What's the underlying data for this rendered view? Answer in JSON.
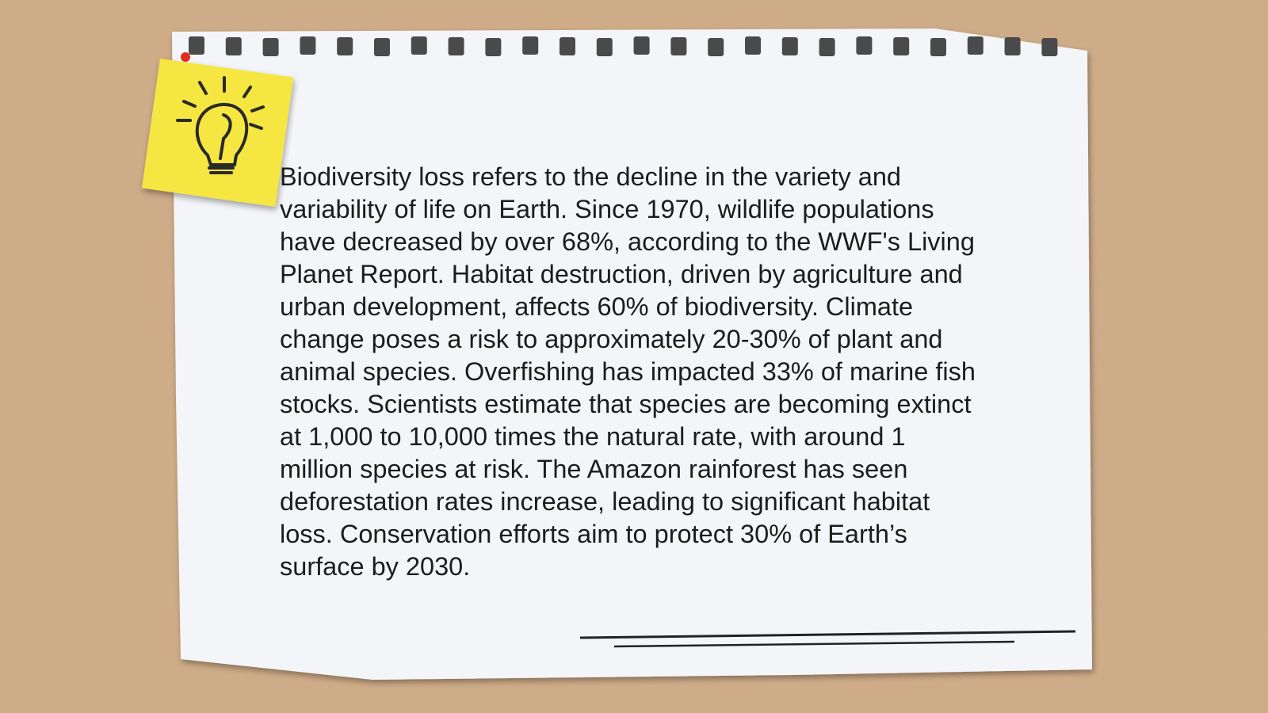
{
  "note": {
    "paragraph": "Biodiversity loss refers to the decline in the variety and variability of life on Earth. Since 1970, wildlife populations have decreased by over 68%, according to the WWF's Living Planet Report. Habitat destruction, driven by agriculture and urban development, affects 60% of biodiversity. Climate change poses a risk to approximately 20-30% of plant and animal species. Overfishing has impacted 33% of marine fish stocks. Scientists estimate that species are becoming extinct at 1,000 to 10,000 times the natural rate, with around 1 million species at risk. The Amazon rainforest has seen deforestation rates increase, leading to significant habitat loss. Conservation efforts aim to protect 30% of Earth’s surface by 2030."
  }
}
